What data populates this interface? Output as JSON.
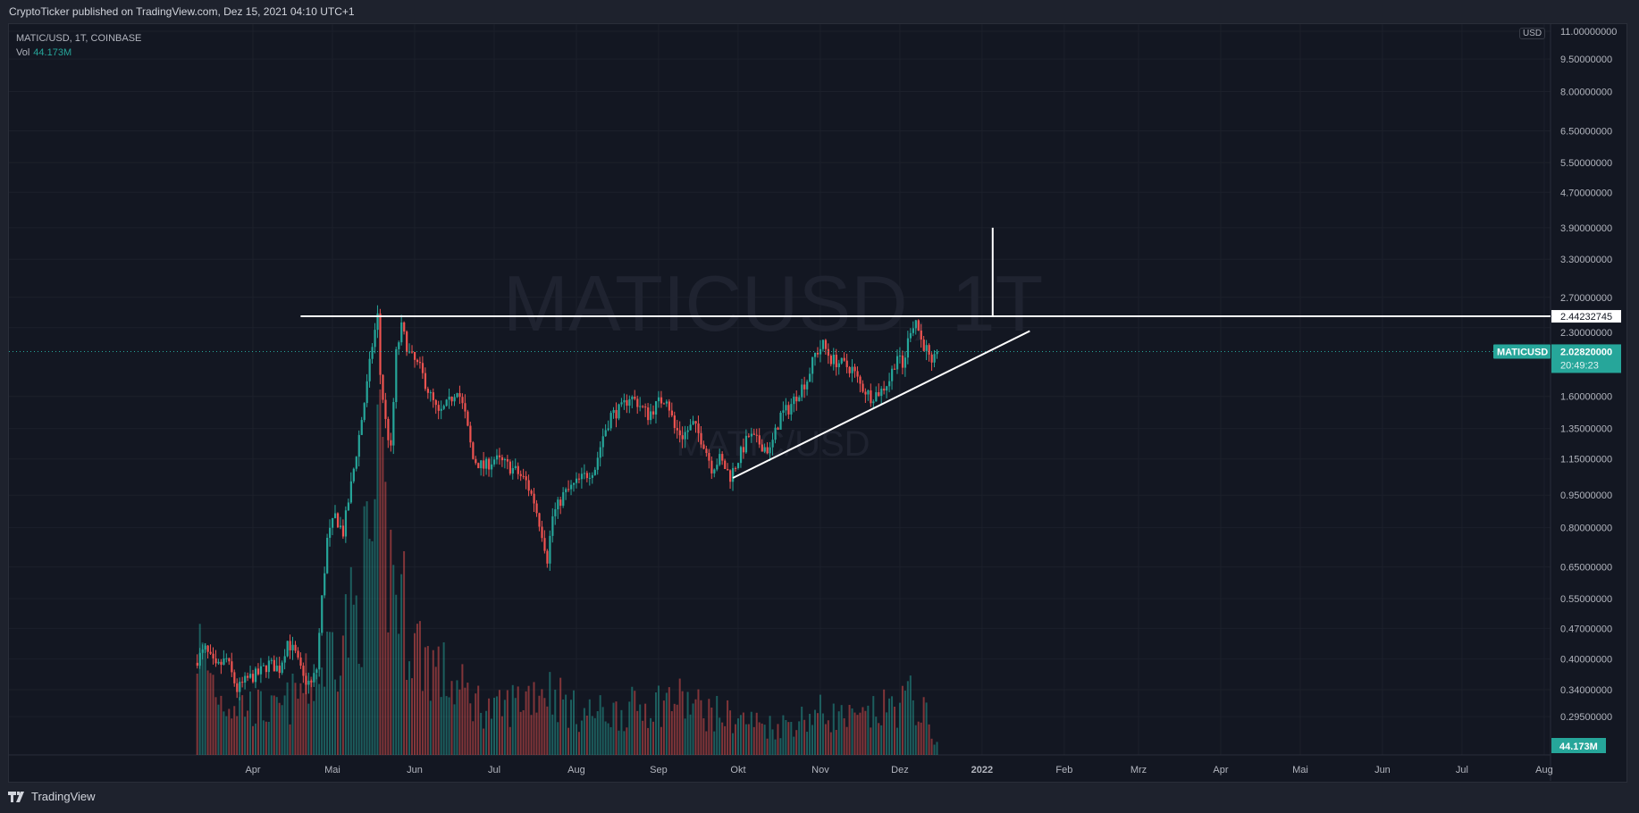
{
  "header": {
    "published": "CryptoTicker published on TradingView.com, Dez 15, 2021 04:10 UTC+1"
  },
  "legend": {
    "symbol": "MATIC/USD, 1T, COINBASE",
    "vol_label": "Vol",
    "vol_value": "44.173M"
  },
  "watermark": {
    "main": "MATICUSD, 1T",
    "sub": "MATIC/USD"
  },
  "price_axis": {
    "currency": "USD",
    "ticks": [
      "11.00000000",
      "9.50000000",
      "8.00000000",
      "6.50000000",
      "5.50000000",
      "4.70000000",
      "3.90000000",
      "3.30000000",
      "2.70000000",
      "2.30000000",
      "1.60000000",
      "1.35000000",
      "1.15000000",
      "0.95000000",
      "0.80000000",
      "0.65000000",
      "0.55000000",
      "0.47000000",
      "0.40000000",
      "0.34000000",
      "0.29500000"
    ]
  },
  "labels": {
    "hline": "2.44232745",
    "symbol_tag": "MATICUSD",
    "last_price": "2.02820000",
    "countdown": "20:49:23",
    "volume_tag": "44.173M"
  },
  "time_axis": {
    "ticks": [
      [
        "2021-04-01",
        "Apr"
      ],
      [
        "2021-05-01",
        "Mai"
      ],
      [
        "2021-06-01",
        "Jun"
      ],
      [
        "2021-07-01",
        "Jul"
      ],
      [
        "2021-08-01",
        "Aug"
      ],
      [
        "2021-09-01",
        "Sep"
      ],
      [
        "2021-10-01",
        "Okt"
      ],
      [
        "2021-11-01",
        "Nov"
      ],
      [
        "2021-12-01",
        "Dez"
      ],
      [
        "2022-01-01",
        "2022"
      ],
      [
        "2022-02-01",
        "Feb"
      ],
      [
        "2022-03-01",
        "Mrz"
      ],
      [
        "2022-04-01",
        "Apr"
      ],
      [
        "2022-05-01",
        "Mai"
      ],
      [
        "2022-06-01",
        "Jun"
      ],
      [
        "2022-07-01",
        "Jul"
      ],
      [
        "2022-08-01",
        "Aug"
      ]
    ]
  },
  "footer": {
    "brand": "TradingView"
  },
  "colors": {
    "up": "#26a69a",
    "down": "#ef5350",
    "background": "#131722",
    "drawing": "#ffffff"
  },
  "chart_data": {
    "type": "candlestick",
    "scale": "log",
    "ylim": [
      0.28,
      11.0
    ],
    "close_anchors": [
      [
        "2021-03-11",
        0.4
      ],
      [
        "2021-03-14",
        0.42
      ],
      [
        "2021-03-18",
        0.38
      ],
      [
        "2021-03-22",
        0.4
      ],
      [
        "2021-03-26",
        0.34
      ],
      [
        "2021-03-30",
        0.36
      ],
      [
        "2021-04-03",
        0.37
      ],
      [
        "2021-04-07",
        0.39
      ],
      [
        "2021-04-11",
        0.38
      ],
      [
        "2021-04-14",
        0.44
      ],
      [
        "2021-04-17",
        0.41
      ],
      [
        "2021-04-20",
        0.36
      ],
      [
        "2021-04-23",
        0.35
      ],
      [
        "2021-04-25",
        0.38
      ],
      [
        "2021-04-27",
        0.55
      ],
      [
        "2021-04-29",
        0.75
      ],
      [
        "2021-05-02",
        0.85
      ],
      [
        "2021-05-05",
        0.78
      ],
      [
        "2021-05-08",
        1.0
      ],
      [
        "2021-05-11",
        1.3
      ],
      [
        "2021-05-14",
        1.7
      ],
      [
        "2021-05-16",
        2.1
      ],
      [
        "2021-05-18",
        2.44
      ],
      [
        "2021-05-19",
        1.8
      ],
      [
        "2021-05-21",
        1.4
      ],
      [
        "2021-05-23",
        1.2
      ],
      [
        "2021-05-25",
        2.0
      ],
      [
        "2021-05-27",
        2.3
      ],
      [
        "2021-05-30",
        2.0
      ],
      [
        "2021-06-03",
        1.85
      ],
      [
        "2021-06-07",
        1.6
      ],
      [
        "2021-06-10",
        1.45
      ],
      [
        "2021-06-14",
        1.55
      ],
      [
        "2021-06-17",
        1.68
      ],
      [
        "2021-06-20",
        1.45
      ],
      [
        "2021-06-23",
        1.15
      ],
      [
        "2021-06-27",
        1.1
      ],
      [
        "2021-07-01",
        1.15
      ],
      [
        "2021-07-05",
        1.12
      ],
      [
        "2021-07-09",
        1.08
      ],
      [
        "2021-07-13",
        1.02
      ],
      [
        "2021-07-16",
        0.92
      ],
      [
        "2021-07-19",
        0.78
      ],
      [
        "2021-07-21",
        0.68
      ],
      [
        "2021-07-23",
        0.85
      ],
      [
        "2021-07-27",
        0.95
      ],
      [
        "2021-07-31",
        1.0
      ],
      [
        "2021-08-04",
        1.05
      ],
      [
        "2021-08-08",
        1.1
      ],
      [
        "2021-08-11",
        1.3
      ],
      [
        "2021-08-14",
        1.45
      ],
      [
        "2021-08-18",
        1.5
      ],
      [
        "2021-08-21",
        1.6
      ],
      [
        "2021-08-24",
        1.55
      ],
      [
        "2021-08-28",
        1.45
      ],
      [
        "2021-09-01",
        1.55
      ],
      [
        "2021-09-04",
        1.6
      ],
      [
        "2021-09-07",
        1.35
      ],
      [
        "2021-09-10",
        1.3
      ],
      [
        "2021-09-14",
        1.38
      ],
      [
        "2021-09-18",
        1.25
      ],
      [
        "2021-09-21",
        1.1
      ],
      [
        "2021-09-24",
        1.15
      ],
      [
        "2021-09-28",
        1.05
      ],
      [
        "2021-10-01",
        1.15
      ],
      [
        "2021-10-05",
        1.3
      ],
      [
        "2021-10-09",
        1.25
      ],
      [
        "2021-10-13",
        1.2
      ],
      [
        "2021-10-17",
        1.45
      ],
      [
        "2021-10-20",
        1.5
      ],
      [
        "2021-10-24",
        1.65
      ],
      [
        "2021-10-27",
        1.75
      ],
      [
        "2021-10-30",
        2.0
      ],
      [
        "2021-11-02",
        2.1
      ],
      [
        "2021-11-05",
        1.95
      ],
      [
        "2021-11-09",
        1.9
      ],
      [
        "2021-11-13",
        1.85
      ],
      [
        "2021-11-16",
        1.7
      ],
      [
        "2021-11-20",
        1.6
      ],
      [
        "2021-11-24",
        1.65
      ],
      [
        "2021-11-27",
        1.75
      ],
      [
        "2021-11-30",
        2.0
      ],
      [
        "2021-12-02",
        1.85
      ],
      [
        "2021-12-05",
        2.3
      ],
      [
        "2021-12-07",
        2.4
      ],
      [
        "2021-12-09",
        2.15
      ],
      [
        "2021-12-11",
        2.05
      ],
      [
        "2021-12-13",
        1.85
      ],
      [
        "2021-12-15",
        2.0282
      ]
    ],
    "volume_anchors_millions": [
      [
        "2021-03-11",
        400
      ],
      [
        "2021-03-20",
        200
      ],
      [
        "2021-04-10",
        150
      ],
      [
        "2021-04-27",
        300
      ],
      [
        "2021-05-01",
        400
      ],
      [
        "2021-05-10",
        500
      ],
      [
        "2021-05-19",
        900
      ],
      [
        "2021-05-22",
        700
      ],
      [
        "2021-06-01",
        400
      ],
      [
        "2021-06-15",
        250
      ],
      [
        "2021-07-01",
        150
      ],
      [
        "2021-07-20",
        250
      ],
      [
        "2021-08-01",
        150
      ],
      [
        "2021-08-15",
        150
      ],
      [
        "2021-09-07",
        200
      ],
      [
        "2021-09-21",
        150
      ],
      [
        "2021-10-15",
        100
      ],
      [
        "2021-11-01",
        150
      ],
      [
        "2021-11-15",
        120
      ],
      [
        "2021-12-05",
        200
      ],
      [
        "2021-12-10",
        150
      ],
      [
        "2021-12-15",
        44.173
      ]
    ],
    "last_price": 2.0282,
    "drawings": {
      "horizontal_line": {
        "price": 2.44232745,
        "from": "2021-04-19"
      },
      "vertical_line": {
        "date": "2022-01-05",
        "from_price": 2.44232745,
        "to_price": 3.9
      },
      "trend_line": {
        "from": [
          "2021-09-29",
          1.04
        ],
        "to": [
          "2022-01-19",
          2.26
        ]
      }
    }
  }
}
